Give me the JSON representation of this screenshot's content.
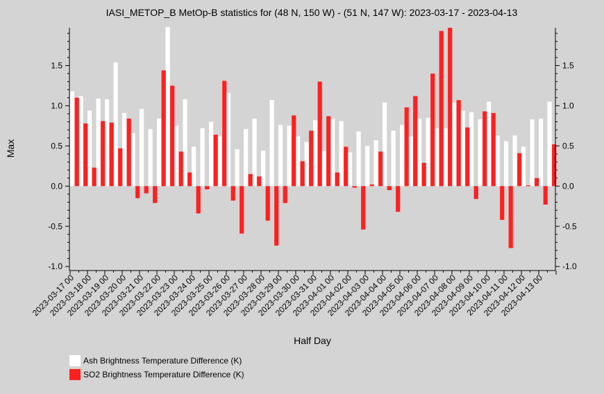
{
  "chart_data": {
    "type": "bar",
    "title": "IASI_METOP_B MetOp-B statistics for (48 N, 150 W) - (51 N, 147 W): 2023-03-17 - 2023-04-13",
    "xlabel": "Half Day",
    "ylabel": "Max",
    "ylim": [
      -1.05,
      1.97
    ],
    "yticks": [
      "1.5",
      "1.0",
      "0.5",
      "0.0",
      "-0.5",
      "-1.0"
    ],
    "ytick_values": [
      1.5,
      1.0,
      0.5,
      0.0,
      -0.5,
      -1.0
    ],
    "xtick_labels": [
      "2023-03-17 00",
      "2023-03-18 00",
      "2023-03-19 00",
      "2023-03-20 00",
      "2023-03-21 00",
      "2023-03-22 00",
      "2023-03-23 00",
      "2023-03-24 00",
      "2023-03-25 00",
      "2023-03-26 00",
      "2023-03-27 00",
      "2023-03-28 00",
      "2023-03-29 00",
      "2023-03-30 00",
      "2023-03-31 00",
      "2023-04-01 00",
      "2023-04-02 00",
      "2023-04-03 00",
      "2023-04-04 00",
      "2023-04-05 00",
      "2023-04-06 00",
      "2023-04-07 00",
      "2023-04-08 00",
      "2023-04-09 00",
      "2023-04-10 00",
      "2023-04-11 00",
      "2023-04-12 00",
      "2023-04-13 00"
    ],
    "grid": false,
    "legend_placement": "bottom-left",
    "series": [
      {
        "name": "Ash Brightness Temperature Difference (K)",
        "color": "#ffffff",
        "values": [
          1.18,
          1.12,
          0.94,
          1.09,
          1.08,
          1.54,
          0.91,
          0.66,
          0.96,
          0.71,
          0.84,
          1.98,
          0.75,
          1.08,
          0.49,
          0.72,
          0.8,
          0.62,
          1.16,
          0.46,
          0.71,
          0.84,
          0.44,
          1.07,
          0.76,
          0.75,
          0.62,
          0.55,
          0.82,
          0.44,
          0.84,
          0.81,
          0.42,
          0.68,
          0.5,
          0.57,
          1.04,
          0.69,
          0.76,
          0.62,
          0.84,
          0.85,
          0.72,
          0.72,
          1.04,
          0.94,
          0.92,
          0.83,
          1.05,
          0.63,
          0.56,
          0.63,
          0.49,
          0.83,
          0.84,
          1.05
        ]
      },
      {
        "name": "SO2 Brightness Temperature Difference (K)",
        "color": "#ff2020",
        "values": [
          1.1,
          0.78,
          0.23,
          0.81,
          0.79,
          0.47,
          0.84,
          -0.15,
          -0.09,
          -0.21,
          1.44,
          1.25,
          0.43,
          0.17,
          -0.34,
          -0.04,
          0.64,
          1.31,
          -0.18,
          -0.59,
          0.15,
          0.12,
          -0.43,
          -0.74,
          -0.21,
          0.88,
          0.31,
          0.69,
          1.3,
          0.87,
          0.17,
          0.49,
          -0.02,
          -0.54,
          0.02,
          0.43,
          -0.05,
          -0.32,
          0.98,
          1.12,
          0.29,
          1.4,
          1.93,
          1.97,
          1.07,
          0.73,
          -0.16,
          0.93,
          0.91,
          -0.42,
          -0.77,
          0.41,
          0.01,
          0.1,
          -0.23,
          0.52
        ]
      }
    ]
  }
}
